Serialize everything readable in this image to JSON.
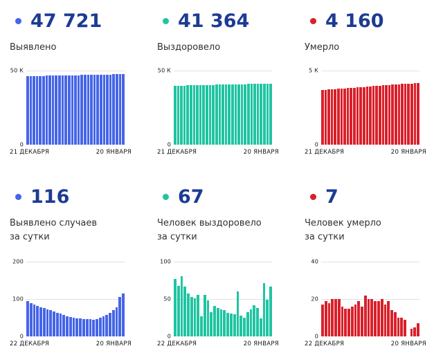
{
  "colors": {
    "stat_number": "#1C3B94",
    "blue": "#4565E8",
    "teal": "#20C4A2",
    "red": "#D9202A",
    "gridline": "#E2E2E2",
    "axis_text": "#141414",
    "label_text": "#303030"
  },
  "chart_data": [
    {
      "id": "detected-total",
      "type": "bar",
      "stat_value": "47 721",
      "stat_label": "Выявлено",
      "color": "#4565E8",
      "y_max": 50000,
      "ylim": [
        0,
        50000
      ],
      "grid": true,
      "y_ticks": [
        {
          "label": "50 К",
          "pos": 0,
          "value": 50000
        },
        {
          "label": "0",
          "pos": 100,
          "value": 0
        }
      ],
      "x_start": "21 ДЕКАБРЯ",
      "x_end": "20 ЯНВАРЯ",
      "values": [
        46300,
        46350,
        46400,
        46450,
        46500,
        46550,
        46600,
        46650,
        46700,
        46740,
        46780,
        46820,
        46860,
        46900,
        46940,
        46980,
        47020,
        47060,
        47100,
        47150,
        47200,
        47250,
        47300,
        47350,
        47400,
        47450,
        47500,
        47550,
        47600,
        47660,
        47721
      ]
    },
    {
      "id": "recovered-total",
      "type": "bar",
      "stat_value": "41 364",
      "stat_label": "Выздоровело",
      "color": "#20C4A2",
      "y_max": 50000,
      "ylim": [
        0,
        50000
      ],
      "grid": true,
      "y_ticks": [
        {
          "label": "50 К",
          "pos": 0,
          "value": 50000
        },
        {
          "label": "0",
          "pos": 100,
          "value": 0
        }
      ],
      "x_start": "21 ДЕКАБРЯ",
      "x_end": "20 ЯНВАРЯ",
      "values": [
        39800,
        39860,
        39920,
        39980,
        40040,
        40100,
        40160,
        40210,
        40260,
        40310,
        40360,
        40410,
        40460,
        40510,
        40560,
        40610,
        40660,
        40710,
        40760,
        40810,
        40860,
        40910,
        40960,
        41010,
        41060,
        41110,
        41160,
        41210,
        41260,
        41310,
        41364
      ]
    },
    {
      "id": "died-total",
      "type": "bar",
      "stat_value": "4 160",
      "stat_label": "Умерло",
      "color": "#D9202A",
      "y_max": 5000,
      "ylim": [
        0,
        5000
      ],
      "grid": true,
      "y_ticks": [
        {
          "label": "5 К",
          "pos": 0,
          "value": 5000
        },
        {
          "label": "0",
          "pos": 100,
          "value": 0
        }
      ],
      "x_start": "21 ДЕКАБРЯ",
      "x_end": "20 ЯНВАРЯ",
      "values": [
        3700,
        3715,
        3730,
        3745,
        3760,
        3775,
        3790,
        3805,
        3820,
        3835,
        3850,
        3865,
        3880,
        3900,
        3920,
        3940,
        3960,
        3980,
        4000,
        4015,
        4030,
        4045,
        4060,
        4075,
        4090,
        4100,
        4110,
        4120,
        4135,
        4148,
        4160
      ]
    },
    {
      "id": "detected-daily",
      "type": "bar",
      "stat_value": "116",
      "stat_label": "Выявлено случаев\nза сутки",
      "color": "#4565E8",
      "y_max": 200,
      "ylim": [
        0,
        200
      ],
      "grid": true,
      "y_ticks": [
        {
          "label": "200",
          "pos": 0,
          "value": 200
        },
        {
          "label": "100",
          "pos": 50,
          "value": 100
        },
        {
          "label": "0",
          "pos": 100,
          "value": 0
        }
      ],
      "x_start": "22 ДЕКАБРЯ",
      "x_end": "20 ЯНВАРЯ",
      "values": [
        95,
        90,
        86,
        82,
        79,
        76,
        73,
        70,
        67,
        64,
        61,
        58,
        55,
        53,
        51,
        49,
        48,
        47,
        46,
        47,
        45,
        47,
        50,
        54,
        58,
        64,
        71,
        78,
        107,
        116
      ]
    },
    {
      "id": "recovered-daily",
      "type": "bar",
      "stat_value": "67",
      "stat_label": "Человек выздоровело\nза сутки",
      "color": "#20C4A2",
      "y_max": 100,
      "ylim": [
        0,
        100
      ],
      "grid": true,
      "y_ticks": [
        {
          "label": "100",
          "pos": 0,
          "value": 100
        },
        {
          "label": "50",
          "pos": 50,
          "value": 50
        },
        {
          "label": "0",
          "pos": 100,
          "value": 0
        }
      ],
      "x_start": "22 ДЕКАБРЯ",
      "x_end": "20 ЯНВАРЯ",
      "values": [
        77,
        68,
        81,
        67,
        58,
        53,
        51,
        56,
        27,
        56,
        48,
        33,
        41,
        38,
        36,
        35,
        32,
        31,
        30,
        60,
        28,
        25,
        33,
        36,
        42,
        38,
        24,
        72,
        49,
        67
      ]
    },
    {
      "id": "died-daily",
      "type": "bar",
      "stat_value": "7",
      "stat_label": "Человек умерло\nза сутки",
      "color": "#D9202A",
      "y_max": 40,
      "ylim": [
        0,
        40
      ],
      "grid": true,
      "y_ticks": [
        {
          "label": "40",
          "pos": 0,
          "value": 40
        },
        {
          "label": "20",
          "pos": 50,
          "value": 20
        },
        {
          "label": "0",
          "pos": 100,
          "value": 0
        }
      ],
      "x_start": "22 ДЕКАБРЯ",
      "x_end": "20 ЯНВАРЯ",
      "values": [
        17,
        19,
        18,
        20,
        20,
        20,
        16,
        15,
        15,
        16,
        17,
        19,
        16,
        22,
        20,
        20,
        19,
        19,
        20,
        17,
        19,
        14,
        13,
        10,
        10,
        9,
        0,
        4,
        5,
        7
      ]
    }
  ]
}
